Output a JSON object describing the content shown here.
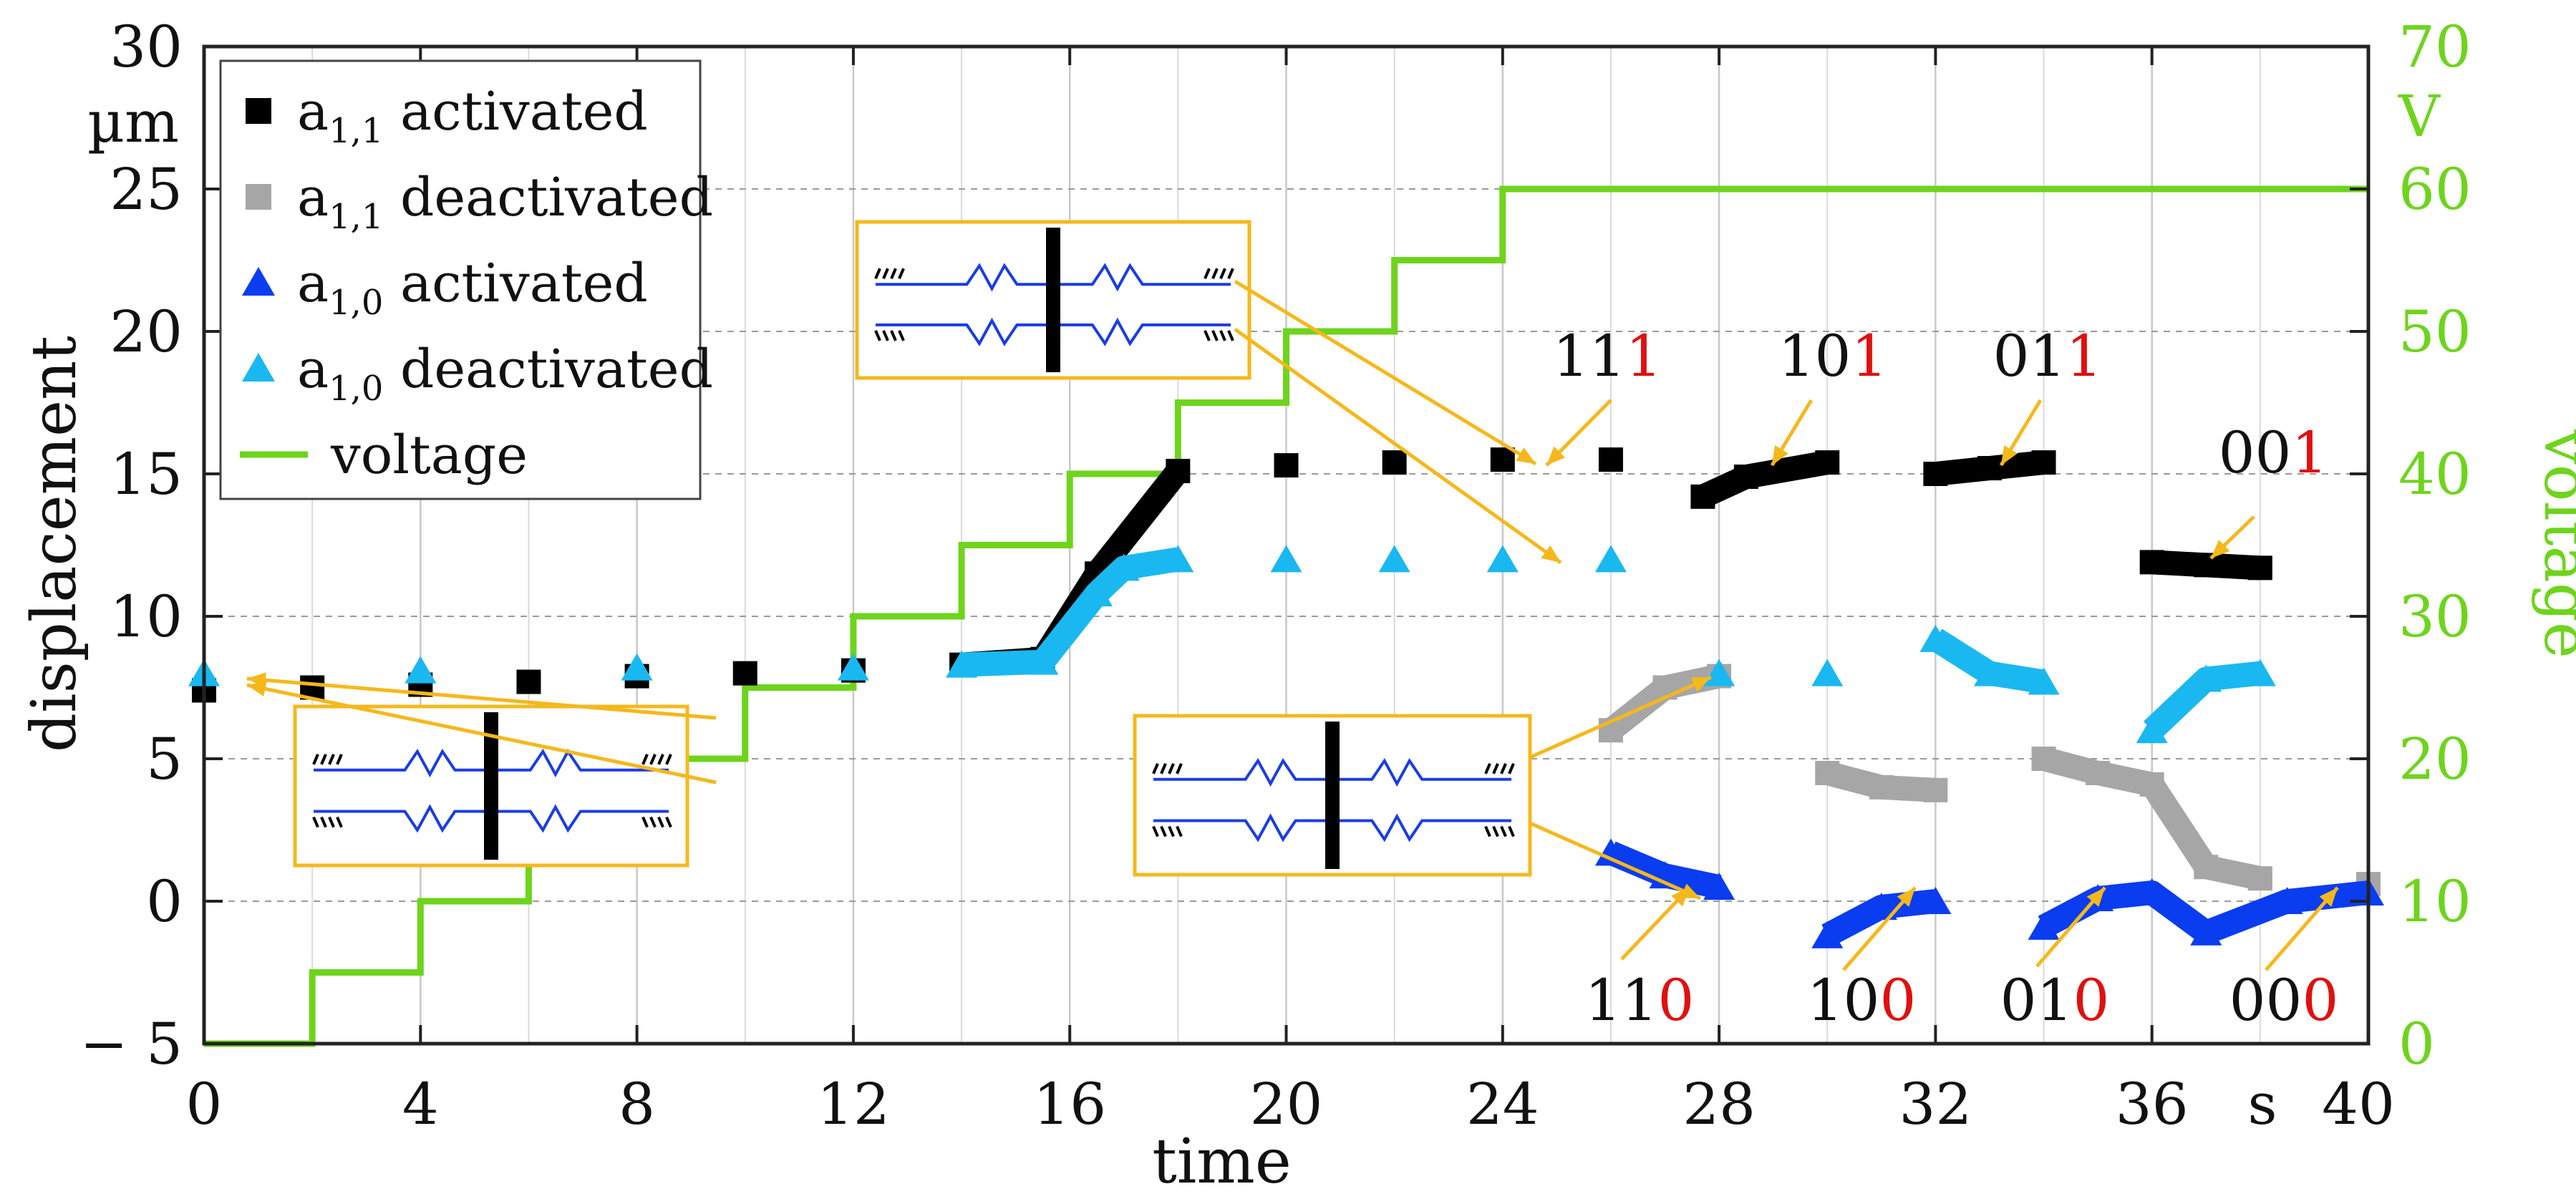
{
  "chart_data": {
    "type": "scatter",
    "xlabel": "time",
    "ylabel": "displacement",
    "y2label": "voltage",
    "x_unit": "s",
    "y_unit": "µm",
    "y2_unit": "V",
    "xlim": [
      0,
      40
    ],
    "ylim": [
      -5,
      30
    ],
    "y2lim": [
      0,
      70
    ],
    "x_ticks": [
      0,
      4,
      8,
      12,
      16,
      20,
      24,
      28,
      32,
      36,
      40
    ],
    "y_ticks": [
      -5,
      0,
      5,
      10,
      15,
      20,
      25,
      30
    ],
    "y2_ticks": [
      0,
      10,
      20,
      30,
      40,
      50,
      60,
      70
    ],
    "x_tick_labels": [
      "0",
      "4",
      "8",
      "12",
      "16",
      "20",
      "24",
      "28",
      "32",
      "36",
      "40"
    ],
    "y_tick_labels": [
      "− 5",
      "0",
      "5",
      "10",
      "15",
      "20",
      "25",
      "30"
    ],
    "y2_tick_labels": [
      "0",
      "10",
      "20",
      "30",
      "40",
      "50",
      "60",
      "70"
    ],
    "grid": true,
    "legend_position": "top-left",
    "colors": {
      "a11_activated": "#000000",
      "a11_deactivated": "#a6a6a6",
      "a10_activated": "#0a3cf0",
      "a10_deactivated": "#1ab8f0",
      "voltage": "#6ed41c",
      "annotation_arrow": "#f5b81c",
      "inset_border": "#f5b81c",
      "inset_line": "#1a3ce6",
      "code_highlight": "#e01010"
    },
    "legend": [
      {
        "key": "a11_activated",
        "base": "a",
        "sub": "1,1",
        "text": " activated",
        "marker": "square"
      },
      {
        "key": "a11_deactivated",
        "base": "a",
        "sub": "1,1",
        "text": " deactivated",
        "marker": "square"
      },
      {
        "key": "a10_activated",
        "base": "a",
        "sub": "1,0",
        "text": " activated",
        "marker": "triangle"
      },
      {
        "key": "a10_deactivated",
        "base": "a",
        "sub": "1,0",
        "text": " deactivated",
        "marker": "triangle"
      },
      {
        "key": "voltage",
        "base": "voltage",
        "sub": "",
        "text": "",
        "marker": "line"
      }
    ],
    "voltage_steps": [
      {
        "t0": 0,
        "t1": 2,
        "v": 0
      },
      {
        "t0": 2,
        "t1": 4,
        "v": 5
      },
      {
        "t0": 4,
        "t1": 6,
        "v": 10
      },
      {
        "t0": 6,
        "t1": 8,
        "v": 15
      },
      {
        "t0": 8,
        "t1": 10,
        "v": 20
      },
      {
        "t0": 10,
        "t1": 12,
        "v": 25
      },
      {
        "t0": 12,
        "t1": 14,
        "v": 30
      },
      {
        "t0": 14,
        "t1": 16,
        "v": 35
      },
      {
        "t0": 16,
        "t1": 18,
        "v": 40
      },
      {
        "t0": 18,
        "t1": 20,
        "v": 45
      },
      {
        "t0": 20,
        "t1": 22,
        "v": 50
      },
      {
        "t0": 22,
        "t1": 24,
        "v": 55
      },
      {
        "t0": 24,
        "t1": 40,
        "v": 60
      }
    ],
    "series": [
      {
        "key": "a11_activated",
        "points": [
          [
            0.0,
            7.4
          ],
          [
            2.0,
            7.5
          ],
          [
            4.0,
            7.6
          ],
          [
            6.0,
            7.7
          ],
          [
            8.0,
            7.9
          ],
          [
            10.0,
            8.0
          ],
          [
            12.0,
            8.1
          ],
          [
            14.0,
            8.3
          ],
          [
            15.5,
            8.5
          ],
          [
            16.5,
            11.5
          ],
          [
            18.0,
            15.1
          ],
          [
            20.0,
            15.3
          ],
          [
            22.0,
            15.4
          ],
          [
            24.0,
            15.5
          ],
          [
            26.0,
            15.5
          ],
          [
            27.7,
            14.2
          ],
          [
            28.5,
            14.9
          ],
          [
            30.0,
            15.4
          ],
          [
            32.0,
            15.0
          ],
          [
            33.0,
            15.2
          ],
          [
            34.0,
            15.4
          ],
          [
            36.0,
            11.9
          ],
          [
            37.0,
            11.8
          ],
          [
            38.0,
            11.7
          ]
        ]
      },
      {
        "key": "a11_deactivated",
        "points": [
          [
            26.0,
            6.0
          ],
          [
            27.0,
            7.5
          ],
          [
            28.0,
            7.9
          ],
          [
            30.0,
            4.5
          ],
          [
            31.0,
            4.0
          ],
          [
            32.0,
            3.9
          ],
          [
            34.0,
            5.0
          ],
          [
            35.0,
            4.5
          ],
          [
            36.0,
            4.1
          ],
          [
            37.0,
            1.2
          ],
          [
            38.0,
            0.8
          ],
          [
            40.0,
            0.6
          ]
        ]
      },
      {
        "key": "a10_activated",
        "points": [
          [
            26.0,
            1.7
          ],
          [
            27.0,
            0.9
          ],
          [
            28.0,
            0.5
          ],
          [
            30.0,
            -1.2
          ],
          [
            31.0,
            -0.2
          ],
          [
            32.0,
            0.0
          ],
          [
            34.0,
            -0.9
          ],
          [
            35.0,
            0.1
          ],
          [
            36.0,
            0.3
          ],
          [
            37.0,
            -1.1
          ],
          [
            38.5,
            0.0
          ],
          [
            40.0,
            0.3
          ]
        ]
      },
      {
        "key": "a10_deactivated",
        "points": [
          [
            0.0,
            8.0
          ],
          [
            4.0,
            8.1
          ],
          [
            8.0,
            8.2
          ],
          [
            12.0,
            8.2
          ],
          [
            14.0,
            8.3
          ],
          [
            15.5,
            8.4
          ],
          [
            16.5,
            10.8
          ],
          [
            17.0,
            11.7
          ],
          [
            18.0,
            12.0
          ],
          [
            20.0,
            12.0
          ],
          [
            22.0,
            12.0
          ],
          [
            24.0,
            12.0
          ],
          [
            26.0,
            12.0
          ],
          [
            28.0,
            8.0
          ],
          [
            30.0,
            8.0
          ],
          [
            32.0,
            9.2
          ],
          [
            33.0,
            8.0
          ],
          [
            34.0,
            7.7
          ],
          [
            36.0,
            6.0
          ],
          [
            37.0,
            7.8
          ],
          [
            38.0,
            8.0
          ]
        ]
      }
    ],
    "annotations": [
      {
        "prefix": "11",
        "suffix": "1",
        "x": 26,
        "y": 15
      },
      {
        "prefix": "10",
        "suffix": "1",
        "x": 30,
        "y": 18
      },
      {
        "prefix": "01",
        "suffix": "1",
        "x": 34,
        "y": 18
      },
      {
        "prefix": "00",
        "suffix": "1",
        "x": 39,
        "y": 15
      },
      {
        "prefix": "11",
        "suffix": "0",
        "x": 27,
        "y": -3
      },
      {
        "prefix": "10",
        "suffix": "0",
        "x": 31,
        "y": -3
      },
      {
        "prefix": "01",
        "suffix": "0",
        "x": 35,
        "y": -3
      },
      {
        "prefix": "00",
        "suffix": "0",
        "x": 39,
        "y": -3
      }
    ]
  }
}
